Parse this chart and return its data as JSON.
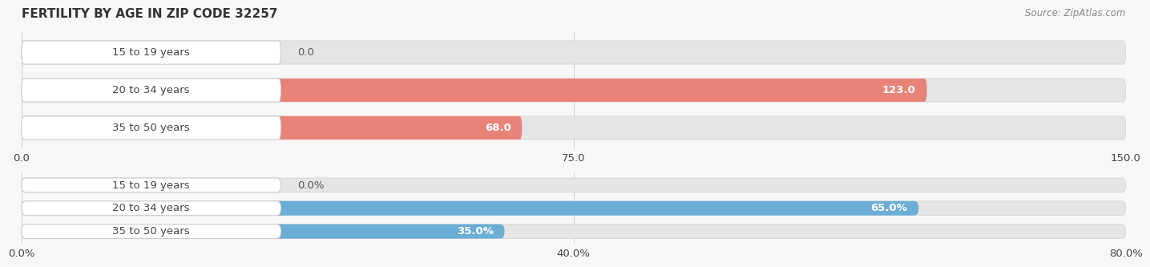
{
  "title": "FERTILITY BY AGE IN ZIP CODE 32257",
  "source": "Source: ZipAtlas.com",
  "top_chart": {
    "categories": [
      "15 to 19 years",
      "20 to 34 years",
      "35 to 50 years"
    ],
    "values": [
      0.0,
      123.0,
      68.0
    ],
    "bar_color": "#E8837A",
    "bar_color_zero": "#F2AFA9",
    "xlim": [
      0,
      150.0
    ],
    "xticks": [
      0.0,
      75.0,
      150.0
    ],
    "xtick_labels": [
      "0.0",
      "75.0",
      "150.0"
    ],
    "value_labels": [
      "0.0",
      "123.0",
      "68.0"
    ]
  },
  "bottom_chart": {
    "categories": [
      "15 to 19 years",
      "20 to 34 years",
      "35 to 50 years"
    ],
    "values": [
      0.0,
      65.0,
      35.0
    ],
    "bar_color": "#6AAED6",
    "bar_color_zero": "#AACFE8",
    "xlim": [
      0,
      80.0
    ],
    "xticks": [
      0.0,
      40.0,
      80.0
    ],
    "xtick_labels": [
      "0.0%",
      "40.0%",
      "80.0%"
    ],
    "value_labels": [
      "0.0%",
      "65.0%",
      "35.0%"
    ]
  },
  "bg_color": "#f7f7f7",
  "bar_bg_color": "#e5e5e5",
  "label_fontsize": 9.5,
  "title_fontsize": 11,
  "source_fontsize": 8.5,
  "bar_height": 0.62,
  "label_color": "#444444",
  "title_color": "#333333",
  "value_color_inside": "#ffffff",
  "value_color_outside": "#555555",
  "pill_bg": "#ffffff",
  "pill_border": "#cccccc"
}
